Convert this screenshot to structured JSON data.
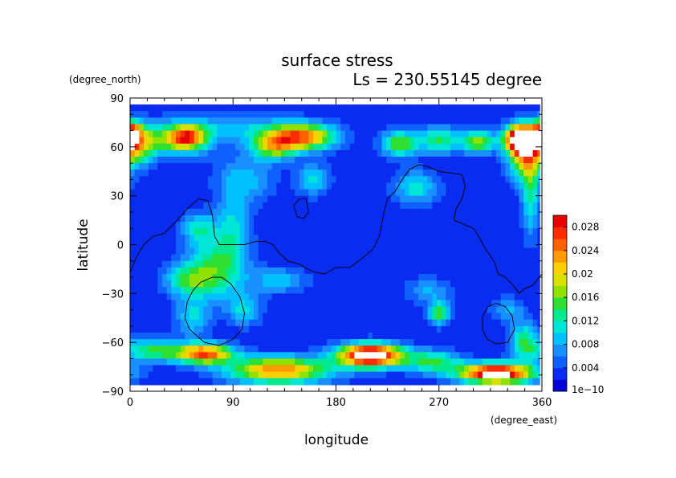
{
  "title": "surface stress",
  "subtitle": "Ls = 230.55145 degree",
  "ylabel_units": "(degree_north)",
  "xlabel_units": "(degree_east)",
  "chart_data": {
    "type": "heatmap",
    "xlabel": "longitude",
    "ylabel": "latitude",
    "xlim": [
      0,
      360
    ],
    "ylim": [
      -90,
      90
    ],
    "xticks": [
      "0",
      "90",
      "180",
      "270",
      "360"
    ],
    "yticks": [
      "90",
      "60",
      "30",
      "0",
      "−30",
      "−60",
      "−90"
    ],
    "colorbar": {
      "labels": [
        "1e−10",
        "0.004",
        "0.008",
        "0.012",
        "0.016",
        "0.02",
        "0.024",
        "0.028"
      ],
      "colors": [
        "#0000d6",
        "#0a2cf0",
        "#1060ff",
        "#1890ff",
        "#00c0ff",
        "#00e6d6",
        "#00e890",
        "#30e030",
        "#90e000",
        "#d8e000",
        "#ffd000",
        "#ff9a00",
        "#ff6000",
        "#ff2c00",
        "#e80000"
      ],
      "overflow_color": "#ffffff",
      "range": [
        0,
        0.03
      ]
    },
    "features": [
      {
        "lon": 0,
        "lat": 68,
        "value": 0.02,
        "wx": 10,
        "wy": 8
      },
      {
        "lon": 5,
        "lat": 60,
        "value": 0.012,
        "wx": 15,
        "wy": 12
      },
      {
        "lon": 35,
        "lat": 64,
        "value": 0.012,
        "wx": 35,
        "wy": 10
      },
      {
        "lon": 50,
        "lat": 66,
        "value": 0.016,
        "wx": 15,
        "wy": 7
      },
      {
        "lon": 150,
        "lat": 66,
        "value": 0.022,
        "wx": 30,
        "wy": 8
      },
      {
        "lon": 125,
        "lat": 60,
        "value": 0.014,
        "wx": 20,
        "wy": 8
      },
      {
        "lon": 90,
        "lat": 72,
        "value": 0.006,
        "wx": 60,
        "wy": 8
      },
      {
        "lon": 235,
        "lat": 62,
        "value": 0.014,
        "wx": 15,
        "wy": 8
      },
      {
        "lon": 270,
        "lat": 64,
        "value": 0.012,
        "wx": 20,
        "wy": 8
      },
      {
        "lon": 305,
        "lat": 63,
        "value": 0.014,
        "wx": 15,
        "wy": 7
      },
      {
        "lon": 340,
        "lat": 65,
        "value": 0.032,
        "wx": 12,
        "wy": 8
      },
      {
        "lon": 345,
        "lat": 55,
        "value": 0.018,
        "wx": 15,
        "wy": 15
      },
      {
        "lon": 350,
        "lat": 30,
        "value": 0.01,
        "wx": 8,
        "wy": 25
      },
      {
        "lon": 100,
        "lat": 40,
        "value": 0.007,
        "wx": 25,
        "wy": 15
      },
      {
        "lon": 160,
        "lat": 40,
        "value": 0.008,
        "wx": 15,
        "wy": 10
      },
      {
        "lon": 250,
        "lat": 35,
        "value": 0.009,
        "wx": 20,
        "wy": 10
      },
      {
        "lon": 60,
        "lat": 10,
        "value": 0.009,
        "wx": 15,
        "wy": 10
      },
      {
        "lon": 90,
        "lat": 10,
        "value": 0.008,
        "wx": 15,
        "wy": 20
      },
      {
        "lon": 75,
        "lat": -15,
        "value": 0.012,
        "wx": 25,
        "wy": 18
      },
      {
        "lon": 50,
        "lat": -22,
        "value": 0.01,
        "wx": 20,
        "wy": 10
      },
      {
        "lon": 130,
        "lat": -22,
        "value": 0.007,
        "wx": 25,
        "wy": 8
      },
      {
        "lon": 55,
        "lat": -45,
        "value": 0.008,
        "wx": 15,
        "wy": 12
      },
      {
        "lon": 100,
        "lat": -40,
        "value": 0.008,
        "wx": 15,
        "wy": 10
      },
      {
        "lon": 270,
        "lat": -42,
        "value": 0.014,
        "wx": 10,
        "wy": 7
      },
      {
        "lon": 260,
        "lat": -28,
        "value": 0.006,
        "wx": 20,
        "wy": 8
      },
      {
        "lon": 330,
        "lat": -40,
        "value": 0.006,
        "wx": 15,
        "wy": 8
      },
      {
        "lon": 20,
        "lat": -65,
        "value": 0.012,
        "wx": 25,
        "wy": 7
      },
      {
        "lon": 65,
        "lat": -67,
        "value": 0.024,
        "wx": 25,
        "wy": 6
      },
      {
        "lon": 130,
        "lat": -77,
        "value": 0.022,
        "wx": 45,
        "wy": 8
      },
      {
        "lon": 210,
        "lat": -68,
        "value": 0.034,
        "wx": 28,
        "wy": 7
      },
      {
        "lon": 265,
        "lat": -72,
        "value": 0.012,
        "wx": 25,
        "wy": 7
      },
      {
        "lon": 320,
        "lat": -79,
        "value": 0.032,
        "wx": 32,
        "wy": 6
      },
      {
        "lon": 345,
        "lat": -60,
        "value": 0.012,
        "wx": 12,
        "wy": 12
      }
    ],
    "contours": [
      [
        [
          0,
          -17
        ],
        [
          6,
          -7
        ],
        [
          12,
          0
        ],
        [
          20,
          5
        ],
        [
          30,
          7
        ],
        [
          40,
          14
        ],
        [
          50,
          22
        ],
        [
          60,
          28
        ],
        [
          68,
          27
        ],
        [
          72,
          18
        ],
        [
          74,
          5
        ],
        [
          78,
          0
        ],
        [
          90,
          0
        ],
        [
          100,
          0
        ],
        [
          110,
          2
        ],
        [
          118,
          2
        ],
        [
          125,
          0
        ],
        [
          130,
          -5
        ],
        [
          138,
          -10
        ],
        [
          148,
          -12
        ],
        [
          155,
          -15
        ],
        [
          162,
          -17
        ],
        [
          170,
          -18
        ],
        [
          180,
          -14
        ],
        [
          192,
          -14
        ],
        [
          200,
          -10
        ],
        [
          212,
          -3
        ],
        [
          218,
          5
        ],
        [
          222,
          20
        ],
        [
          225,
          28
        ],
        [
          232,
          33
        ],
        [
          238,
          40
        ],
        [
          244,
          46
        ],
        [
          252,
          49
        ],
        [
          260,
          48
        ],
        [
          270,
          45
        ],
        [
          280,
          44
        ],
        [
          290,
          43
        ],
        [
          293,
          36
        ],
        [
          290,
          28
        ],
        [
          285,
          22
        ],
        [
          283,
          15
        ],
        [
          290,
          13
        ],
        [
          300,
          10
        ],
        [
          305,
          5
        ],
        [
          310,
          -2
        ],
        [
          318,
          -10
        ],
        [
          322,
          -18
        ],
        [
          328,
          -20
        ],
        [
          335,
          -25
        ],
        [
          340,
          -30
        ],
        [
          345,
          -27
        ],
        [
          352,
          -25
        ],
        [
          360,
          -18
        ]
      ],
      [
        [
          72,
          -20
        ],
        [
          80,
          -20
        ],
        [
          88,
          -24
        ],
        [
          96,
          -32
        ],
        [
          100,
          -42
        ],
        [
          98,
          -52
        ],
        [
          90,
          -58
        ],
        [
          78,
          -62
        ],
        [
          65,
          -60
        ],
        [
          52,
          -52
        ],
        [
          48,
          -45
        ],
        [
          50,
          -35
        ],
        [
          55,
          -28
        ],
        [
          62,
          -23
        ],
        [
          72,
          -20
        ]
      ],
      [
        [
          143,
          24
        ],
        [
          148,
          28
        ],
        [
          154,
          28
        ],
        [
          156,
          20
        ],
        [
          152,
          16
        ],
        [
          146,
          17
        ],
        [
          143,
          24
        ]
      ],
      [
        [
          320,
          -36
        ],
        [
          328,
          -38
        ],
        [
          334,
          -44
        ],
        [
          336,
          -52
        ],
        [
          330,
          -60
        ],
        [
          320,
          -61
        ],
        [
          312,
          -58
        ],
        [
          308,
          -52
        ],
        [
          308,
          -44
        ],
        [
          313,
          -38
        ],
        [
          320,
          -36
        ]
      ]
    ]
  }
}
